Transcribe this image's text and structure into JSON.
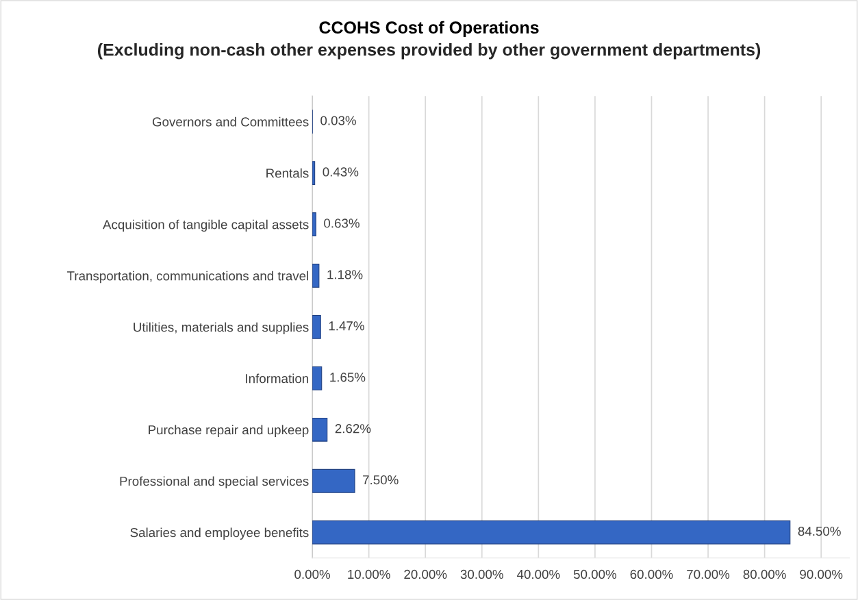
{
  "chart_data": {
    "type": "bar",
    "orientation": "horizontal",
    "title": "CCOHS Cost of Operations",
    "subtitle": "(Excluding non-cash other expenses provided by other government departments)",
    "categories": [
      "Governors and Committees",
      "Rentals",
      "Acquisition of tangible capital assets",
      "Transportation, communications and travel",
      "Utilities, materials and supplies",
      "Information",
      "Purchase repair and upkeep",
      "Professional and special services",
      "Salaries and employee benefits"
    ],
    "values": [
      0.03,
      0.43,
      0.63,
      1.18,
      1.47,
      1.65,
      2.62,
      7.5,
      84.5
    ],
    "value_labels": [
      "0.03%",
      "0.43%",
      "0.63%",
      "1.18%",
      "1.47%",
      "1.65%",
      "2.62%",
      "7.50%",
      "84.50%"
    ],
    "color": "#3467c4",
    "xlim": [
      0,
      95
    ],
    "xticks": [
      {
        "value": 0,
        "label": "0.00%"
      },
      {
        "value": 10,
        "label": "10.00%"
      },
      {
        "value": 20,
        "label": "20.00%"
      },
      {
        "value": 30,
        "label": "30.00%"
      },
      {
        "value": 40,
        "label": "40.00%"
      },
      {
        "value": 50,
        "label": "50.00%"
      },
      {
        "value": 60,
        "label": "60.00%"
      },
      {
        "value": 70,
        "label": "70.00%"
      },
      {
        "value": 80,
        "label": "80.00%"
      },
      {
        "value": 90,
        "label": "90.00%"
      }
    ],
    "grid": "x",
    "legend": false
  }
}
